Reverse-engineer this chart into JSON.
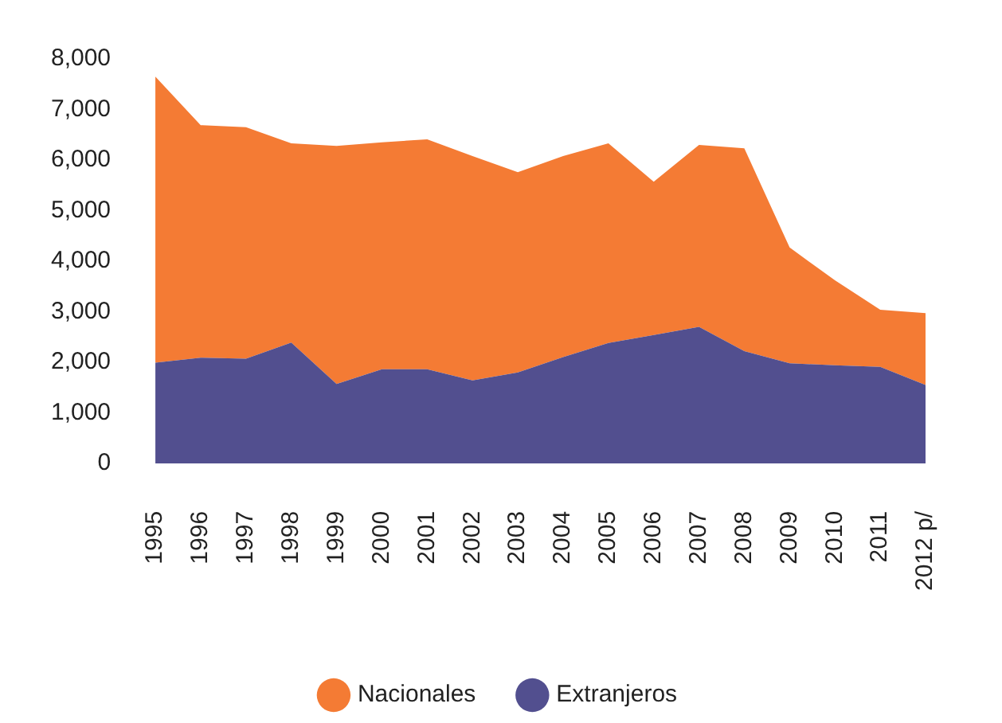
{
  "chart_data": {
    "type": "area",
    "stacked": true,
    "categories": [
      "1995",
      "1996",
      "1997",
      "1998",
      "1999",
      "2000",
      "2001",
      "2002",
      "2003",
      "2004",
      "2005",
      "2006",
      "2007",
      "2008",
      "2009",
      "2010",
      "2011",
      "2012 p/"
    ],
    "series": [
      {
        "name": "Extranjeros",
        "color": "#524f8f",
        "values": [
          1990,
          2090,
          2070,
          2390,
          1570,
          1860,
          1860,
          1640,
          1800,
          2100,
          2380,
          2540,
          2700,
          2220,
          1980,
          1940,
          1910,
          1550
        ]
      },
      {
        "name": "Nacionales",
        "color": "#f47b34",
        "values": [
          5660,
          4600,
          4580,
          3940,
          4710,
          4490,
          4550,
          4440,
          3960,
          3980,
          3950,
          3030,
          3600,
          4010,
          2290,
          1680,
          1130,
          1420
        ]
      }
    ],
    "ylim": [
      0,
      8000
    ],
    "yticks": [
      0,
      {
        "value": 1000,
        "label": "1,000"
      },
      {
        "value": 2000,
        "label": "2,000"
      },
      {
        "value": 3000,
        "label": "3,000"
      },
      {
        "value": 4000,
        "label": "4,000"
      },
      {
        "value": 5000,
        "label": "5,000"
      },
      {
        "value": 6000,
        "label": "6,000"
      },
      {
        "value": 7000,
        "label": "7,000"
      },
      {
        "value": 8000,
        "label": "8,000"
      }
    ],
    "grid": false,
    "legend": "bottom"
  }
}
